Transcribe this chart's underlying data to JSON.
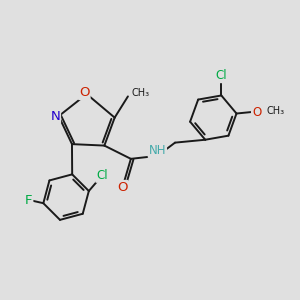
{
  "bg_color": "#e0e0e0",
  "bond_color": "#1a1a1a",
  "bond_width": 1.4,
  "atom_colors": {
    "O": "#cc2200",
    "N": "#2200cc",
    "F": "#00aa44",
    "Cl": "#00aa44",
    "NH": "#44aaaa"
  },
  "font_size": 8.5,
  "double_inner": 0.09
}
